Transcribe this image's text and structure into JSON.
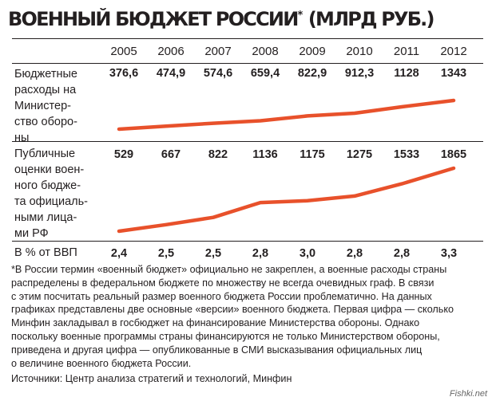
{
  "title": "ВОЕННЫЙ БЮДЖЕТ РОССИИ",
  "title_mark": "*",
  "title_unit": "(МЛРД РУБ.)",
  "chart_data": {
    "type": "line",
    "x": [
      "2005",
      "2006",
      "2007",
      "2008",
      "2009",
      "2010",
      "2011",
      "2012"
    ],
    "rows": [
      {
        "label_lines": [
          "Бюджетные",
          "расходы на",
          "Министер-",
          "ство оборо-",
          "ны"
        ],
        "labels": [
          "376,6",
          "474,9",
          "574,6",
          "659,4",
          "822,9",
          "912,3",
          "1128",
          "1343"
        ],
        "values": [
          376.6,
          474.9,
          574.6,
          659.4,
          822.9,
          912.3,
          1128,
          1343
        ],
        "plotted": true
      },
      {
        "label_lines": [
          "Публичные",
          "оценки воен-",
          "ного бюдже-",
          "та официаль-",
          "ными лица-",
          "ми РФ"
        ],
        "labels": [
          "529",
          "667",
          "822",
          "1136",
          "1175",
          "1275",
          "1533",
          "1865"
        ],
        "values": [
          529,
          667,
          822,
          1136,
          1175,
          1275,
          1533,
          1865
        ],
        "plotted": true
      },
      {
        "label_lines": [
          "В % от ВВП"
        ],
        "labels": [
          "2,4",
          "2,5",
          "2,5",
          "2,8",
          "3,0",
          "2,8",
          "2,8",
          "3,3"
        ],
        "values": [
          2.4,
          2.5,
          2.5,
          2.8,
          3.0,
          2.8,
          2.8,
          3.3
        ],
        "plotted": false
      }
    ],
    "line_color": "#e8512b"
  },
  "footnote_lines": [
    "*В России термин «военный бюджет» официально не закреплен, а военные расходы страны",
    "распределены в федеральном бюджете по множеству не всегда очевидных граф. В связи",
    "с этим посчитать реальный размер военного бюджета России проблематично. На данных",
    "графиках представлены две основные «версии» военного бюджета. Первая цифра — сколько",
    "Минфин закладывал в госбюджет на финансирование Министерства обороны. Однако",
    "поскольку военные программы страны финансируются не только Министерством обороны,",
    "приведена и другая цифра — опубликованные в СМИ высказывания официальных лиц",
    "о величине военного бюджета России."
  ],
  "source": "Источники: Центр анализа стратегий и технологий, Минфин",
  "watermark": "Fishki.net"
}
